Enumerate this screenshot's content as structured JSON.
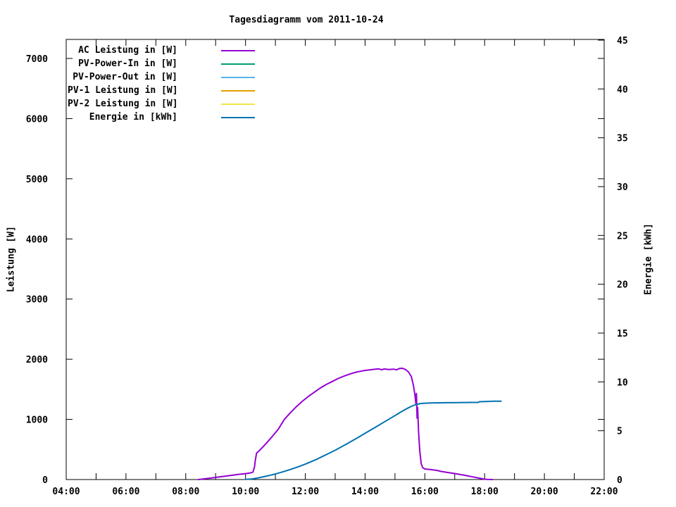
{
  "chart_data": {
    "type": "line",
    "title": "Tagesdiagramm vom 2011-10-24",
    "x_axis": {
      "unit": "time",
      "range_hours": [
        4,
        22
      ],
      "tick_every_hours": 1,
      "label_hours": [
        4,
        6,
        8,
        10,
        12,
        14,
        16,
        18,
        20,
        22
      ],
      "labels": [
        "04:00",
        "06:00",
        "08:00",
        "10:00",
        "12:00",
        "14:00",
        "16:00",
        "18:00",
        "20:00",
        "22:00"
      ]
    },
    "y_left_axis": {
      "label": "Leistung [W]",
      "range": [
        0,
        7000
      ],
      "ticks": [
        0,
        1000,
        2000,
        3000,
        4000,
        5000,
        6000,
        7000
      ]
    },
    "y_right_axis": {
      "label": "Energie [kWh]",
      "range": [
        0,
        45
      ],
      "ticks": [
        0,
        5,
        10,
        15,
        20,
        25,
        30,
        35,
        40,
        45
      ]
    },
    "grid": false,
    "legend_position": "top-left-inside",
    "legend": [
      {
        "label": "AC Leistung in [W]",
        "color": "#9400d3"
      },
      {
        "label": "PV-Power-In in [W]",
        "color": "#009e73"
      },
      {
        "label": "PV-Power-Out in [W]",
        "color": "#56b4e9"
      },
      {
        "label": "PV-1 Leistung in [W]",
        "color": "#e69f00"
      },
      {
        "label": "PV-2 Leistung in [W]",
        "color": "#f0e442"
      },
      {
        "label": "Energie in [kWh]",
        "color": "#0072b2"
      }
    ],
    "series": [
      {
        "name": "AC Leistung in [W]",
        "color": "#9400d3",
        "y_axis": "left",
        "points": [
          [
            8.42,
            0
          ],
          [
            8.6,
            10
          ],
          [
            8.8,
            22
          ],
          [
            9.0,
            35
          ],
          [
            9.2,
            48
          ],
          [
            9.4,
            62
          ],
          [
            9.6,
            75
          ],
          [
            9.8,
            88
          ],
          [
            10.0,
            98
          ],
          [
            10.15,
            108
          ],
          [
            10.25,
            125
          ],
          [
            10.3,
            210
          ],
          [
            10.33,
            330
          ],
          [
            10.37,
            440
          ],
          [
            10.45,
            475
          ],
          [
            10.55,
            525
          ],
          [
            10.7,
            605
          ],
          [
            10.9,
            720
          ],
          [
            11.1,
            840
          ],
          [
            11.3,
            1000
          ],
          [
            11.5,
            1110
          ],
          [
            11.7,
            1210
          ],
          [
            11.9,
            1300
          ],
          [
            12.1,
            1380
          ],
          [
            12.3,
            1450
          ],
          [
            12.5,
            1520
          ],
          [
            12.7,
            1580
          ],
          [
            12.9,
            1630
          ],
          [
            13.1,
            1680
          ],
          [
            13.3,
            1720
          ],
          [
            13.5,
            1755
          ],
          [
            13.7,
            1785
          ],
          [
            13.9,
            1805
          ],
          [
            14.1,
            1820
          ],
          [
            14.3,
            1832
          ],
          [
            14.45,
            1840
          ],
          [
            14.55,
            1826
          ],
          [
            14.65,
            1838
          ],
          [
            14.8,
            1830
          ],
          [
            14.95,
            1836
          ],
          [
            15.05,
            1824
          ],
          [
            15.15,
            1846
          ],
          [
            15.25,
            1850
          ],
          [
            15.35,
            1830
          ],
          [
            15.45,
            1790
          ],
          [
            15.55,
            1710
          ],
          [
            15.62,
            1560
          ],
          [
            15.67,
            1400
          ],
          [
            15.7,
            1260
          ],
          [
            15.72,
            1430
          ],
          [
            15.74,
            1020
          ],
          [
            15.76,
            1200
          ],
          [
            15.79,
            800
          ],
          [
            15.83,
            480
          ],
          [
            15.88,
            260
          ],
          [
            15.93,
            195
          ],
          [
            16.0,
            175
          ],
          [
            16.2,
            165
          ],
          [
            16.4,
            152
          ],
          [
            16.55,
            135
          ],
          [
            16.75,
            118
          ],
          [
            17.0,
            100
          ],
          [
            17.2,
            82
          ],
          [
            17.4,
            64
          ],
          [
            17.6,
            44
          ],
          [
            17.8,
            24
          ],
          [
            17.95,
            10
          ],
          [
            18.07,
            2
          ],
          [
            18.27,
            0
          ]
        ]
      },
      {
        "name": "PV-Power-In in [W]",
        "color": "#009e73",
        "y_axis": "left",
        "points": []
      },
      {
        "name": "PV-Power-Out in [W]",
        "color": "#56b4e9",
        "y_axis": "left",
        "points": []
      },
      {
        "name": "PV-1 Leistung in [W]",
        "color": "#e69f00",
        "y_axis": "left",
        "points": []
      },
      {
        "name": "PV-2 Leistung in [W]",
        "color": "#f0e442",
        "y_axis": "left",
        "points": []
      },
      {
        "name": "Energie in [kWh]",
        "color": "#0072b2",
        "y_axis": "right",
        "points": [
          [
            10.0,
            0.02
          ],
          [
            10.2,
            0.06
          ],
          [
            10.4,
            0.15
          ],
          [
            10.6,
            0.28
          ],
          [
            10.8,
            0.42
          ],
          [
            11.0,
            0.57
          ],
          [
            11.2,
            0.74
          ],
          [
            11.4,
            0.93
          ],
          [
            11.6,
            1.13
          ],
          [
            11.8,
            1.35
          ],
          [
            12.0,
            1.58
          ],
          [
            12.2,
            1.83
          ],
          [
            12.4,
            2.1
          ],
          [
            12.6,
            2.4
          ],
          [
            12.8,
            2.7
          ],
          [
            13.0,
            3.0
          ],
          [
            13.2,
            3.33
          ],
          [
            13.4,
            3.67
          ],
          [
            13.6,
            4.02
          ],
          [
            13.8,
            4.37
          ],
          [
            14.0,
            4.73
          ],
          [
            14.2,
            5.09
          ],
          [
            14.4,
            5.45
          ],
          [
            14.6,
            5.82
          ],
          [
            14.8,
            6.18
          ],
          [
            15.0,
            6.55
          ],
          [
            15.2,
            6.92
          ],
          [
            15.4,
            7.27
          ],
          [
            15.55,
            7.5
          ],
          [
            15.7,
            7.67
          ],
          [
            15.85,
            7.78
          ],
          [
            16.0,
            7.82
          ],
          [
            16.3,
            7.85
          ],
          [
            16.7,
            7.87
          ],
          [
            17.1,
            7.88
          ],
          [
            17.5,
            7.9
          ],
          [
            17.78,
            7.9
          ],
          [
            17.82,
            7.97
          ],
          [
            18.1,
            8.0
          ],
          [
            18.3,
            8.02
          ],
          [
            18.55,
            8.02
          ]
        ]
      }
    ]
  }
}
